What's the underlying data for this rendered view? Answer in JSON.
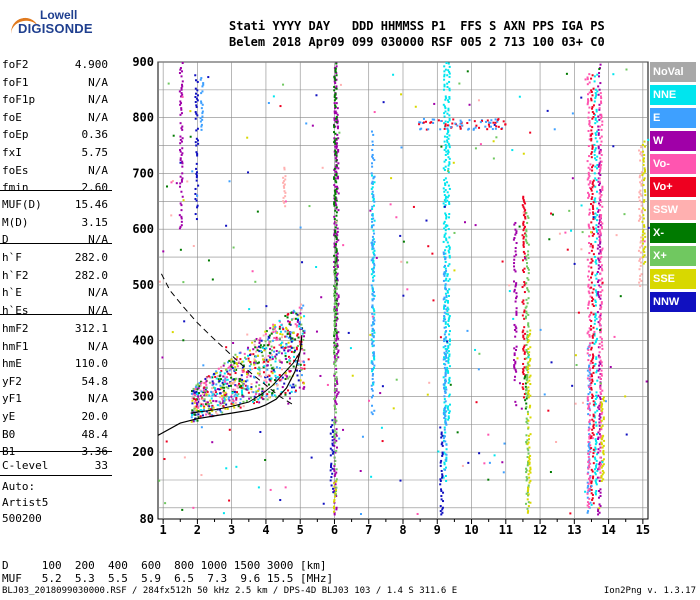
{
  "logo": {
    "line1": "Lowell",
    "line2": "DIGISONDE"
  },
  "header": {
    "row1": "Stati YYYY DAY   DDD HHMMSS P1  FFS S AXN PPS IGA PS",
    "row2": "Belem 2018 Apr09 099 030000 RSF 005 2 713 100 03+ C0"
  },
  "params_a": [
    {
      "name": "foF2",
      "value": "4.900"
    },
    {
      "name": "foF1",
      "value": "N/A"
    },
    {
      "name": "foF1p",
      "value": "N/A"
    },
    {
      "name": "foE",
      "value": "N/A"
    },
    {
      "name": "foEp",
      "value": "0.36"
    },
    {
      "name": "fxI",
      "value": "5.75"
    },
    {
      "name": "foEs",
      "value": "N/A"
    },
    {
      "name": "fmin",
      "value": "2.60"
    }
  ],
  "params_b": [
    {
      "name": "MUF(D)",
      "value": "15.46"
    },
    {
      "name": "M(D)",
      "value": "3.15"
    },
    {
      "name": "D",
      "value": "N/A"
    }
  ],
  "params_c": [
    {
      "name": "h`F",
      "value": "282.0"
    },
    {
      "name": "h`F2",
      "value": "282.0"
    },
    {
      "name": "h`E",
      "value": "N/A"
    },
    {
      "name": "h`Es",
      "value": "N/A"
    }
  ],
  "params_d": [
    {
      "name": "hmF2",
      "value": "312.1"
    },
    {
      "name": "hmF1",
      "value": "N/A"
    },
    {
      "name": "hmE",
      "value": "110.0"
    },
    {
      "name": "yF2",
      "value": "54.8"
    },
    {
      "name": "yF1",
      "value": "N/A"
    },
    {
      "name": "yE",
      "value": "20.0"
    },
    {
      "name": "B0",
      "value": "48.4"
    },
    {
      "name": "B1",
      "value": "3.36"
    }
  ],
  "params_e": [
    {
      "name": "C-level",
      "value": "33"
    }
  ],
  "auto": {
    "line1": "Auto:",
    "line2": "Artist5",
    "line3": "500200"
  },
  "legend": [
    {
      "label": "NoVal",
      "color": "#a8a8a8"
    },
    {
      "label": "NNE",
      "color": "#00e5ee"
    },
    {
      "label": "E",
      "color": "#3ea0ff"
    },
    {
      "label": "W",
      "color": "#a000a8"
    },
    {
      "label": "Vo-",
      "color": "#ff55b0"
    },
    {
      "label": "Vo+",
      "color": "#ee0020"
    },
    {
      "label": "SSW",
      "color": "#ffb0b0"
    },
    {
      "label": "X-",
      "color": "#007a00"
    },
    {
      "label": "X+",
      "color": "#70c860"
    },
    {
      "label": "SSE",
      "color": "#d8d800"
    },
    {
      "label": "NNW",
      "color": "#1010c0"
    }
  ],
  "table": {
    "row1": "D     100  200  400  600  800 1000 1500 3000 [km]",
    "row2": "MUF   5.2  5.3  5.5  5.9  6.5  7.3  9.6 15.5 [MHz]"
  },
  "footer": {
    "left": "BLJ03_2018099030000.RSF / 284fx512h 50 kHz 2.5 km / DPS-4D BLJ03 103 / 1.4 S 311.6 E",
    "right": "Ion2Png v. 1.3.17"
  },
  "chart_data": {
    "type": "scatter",
    "title": "",
    "xlabel": "",
    "ylabel": "",
    "xlim": [
      0.85,
      15.15
    ],
    "ylim": [
      80,
      900
    ],
    "x_ticks": [
      1,
      2,
      3,
      4,
      5,
      6,
      7,
      8,
      9,
      10,
      11,
      12,
      13,
      14,
      15
    ],
    "y_ticks": [
      80,
      200,
      300,
      400,
      500,
      600,
      700,
      800,
      900
    ],
    "grid": true,
    "legend_position": "right",
    "series": [
      {
        "name": "NNE",
        "color": "#00e5ee",
        "columns": [
          [
            9.2,
            150,
            900
          ],
          [
            9.3,
            260,
            900
          ],
          [
            7.1,
            320,
            700
          ],
          [
            13.6,
            120,
            880
          ]
        ]
      },
      {
        "name": "E",
        "color": "#3ea0ff",
        "columns": [
          [
            7.1,
            270,
            780
          ],
          [
            2.1,
            780,
            880
          ],
          [
            13.4,
            90,
            400
          ],
          [
            9.2,
            170,
            560
          ]
        ]
      },
      {
        "name": "W",
        "color": "#a000a8",
        "columns": [
          [
            6.0,
            90,
            900
          ],
          [
            6.05,
            300,
            840
          ],
          [
            13.7,
            90,
            900
          ],
          [
            1.5,
            600,
            900
          ],
          [
            11.25,
            280,
            620
          ]
        ]
      },
      {
        "name": "Vo-",
        "color": "#ff55b0",
        "columns": [
          [
            13.4,
            100,
            880
          ],
          [
            13.75,
            150,
            850
          ]
        ]
      },
      {
        "name": "Vo+",
        "color": "#ee0020",
        "columns": [
          [
            13.5,
            110,
            880
          ],
          [
            11.5,
            300,
            660
          ]
        ]
      },
      {
        "name": "SSW",
        "color": "#ffb0b0",
        "columns": [
          [
            14.9,
            500,
            760
          ],
          [
            4.5,
            640,
            720
          ]
        ]
      },
      {
        "name": "X-",
        "color": "#007a00",
        "columns": [
          [
            6.0,
            380,
            900
          ],
          [
            11.55,
            280,
            340
          ]
        ]
      },
      {
        "name": "X+",
        "color": "#70c860",
        "columns": [
          [
            11.6,
            100,
            640
          ],
          [
            6.0,
            120,
            540
          ]
        ]
      },
      {
        "name": "SSE",
        "color": "#d8d800",
        "columns": [
          [
            15.0,
            540,
            760
          ],
          [
            11.65,
            90,
            420
          ],
          [
            6.0,
            80,
            150
          ],
          [
            13.8,
            150,
            300
          ]
        ]
      },
      {
        "name": "NNW",
        "color": "#1010c0",
        "columns": [
          [
            1.95,
            620,
            880
          ],
          [
            5.9,
            130,
            260
          ],
          [
            9.1,
            90,
            250
          ]
        ]
      }
    ],
    "trace_curve": [
      [
        0.85,
        230
      ],
      [
        1.5,
        252
      ],
      [
        2.0,
        260
      ],
      [
        2.5,
        265
      ],
      [
        3.0,
        270
      ],
      [
        3.5,
        275
      ],
      [
        3.8,
        280
      ],
      [
        4.0,
        285
      ],
      [
        4.3,
        295
      ],
      [
        4.6,
        315
      ],
      [
        4.85,
        345
      ],
      [
        5.0,
        380
      ],
      [
        5.05,
        410
      ]
    ],
    "trace_curve_o": [
      [
        1.8,
        270
      ],
      [
        2.5,
        276
      ],
      [
        3.0,
        282
      ],
      [
        3.5,
        290
      ],
      [
        3.9,
        305
      ],
      [
        4.2,
        320
      ],
      [
        4.5,
        340
      ],
      [
        4.8,
        360
      ],
      [
        5.0,
        380
      ]
    ],
    "profile_dashed": [
      [
        0.95,
        520
      ],
      [
        1.2,
        490
      ],
      [
        1.6,
        460
      ],
      [
        2.0,
        432
      ],
      [
        2.4,
        408
      ],
      [
        2.8,
        385
      ],
      [
        3.2,
        362
      ],
      [
        3.6,
        340
      ],
      [
        4.0,
        320
      ],
      [
        4.4,
        300
      ],
      [
        4.8,
        285
      ]
    ]
  }
}
